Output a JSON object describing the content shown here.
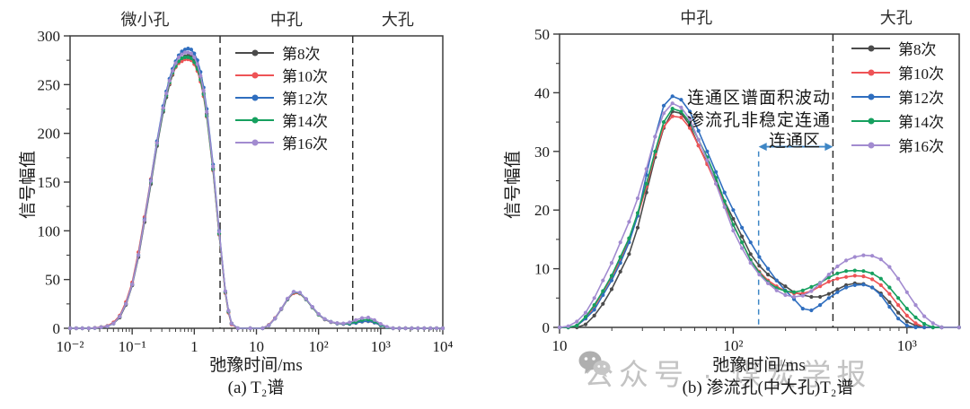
{
  "watermark": {
    "text": "公众号 · 煤炭学报",
    "icon": "wechat-icon"
  },
  "chart_data": [
    {
      "type": "line",
      "caption": "(a) T₂谱",
      "xlabel": "弛豫时间/ms",
      "ylabel": "信号幅值",
      "pore_labels": [
        "微小孔",
        "中孔",
        "大孔"
      ],
      "pore_boundaries_ms": [
        2.6,
        355
      ],
      "xlim_log": [
        -2,
        4
      ],
      "ylim": [
        0,
        300
      ],
      "y_major_step": 50,
      "y_minor_step": 25,
      "x_ticks": [
        {
          "value": 0.01,
          "label": "10⁻²"
        },
        {
          "value": 0.1,
          "label": "10⁻¹"
        },
        {
          "value": 1,
          "label": "1"
        },
        {
          "value": 10,
          "label": "10"
        },
        {
          "value": 100,
          "label": "10²"
        },
        {
          "value": 1000,
          "label": "10³"
        },
        {
          "value": 10000,
          "label": "10⁴"
        }
      ],
      "y_ticks": [
        {
          "value": 0,
          "label": "0"
        },
        {
          "value": 50,
          "label": "50"
        },
        {
          "value": 100,
          "label": "100"
        },
        {
          "value": 150,
          "label": "150"
        },
        {
          "value": 200,
          "label": "200"
        },
        {
          "value": 250,
          "label": "250"
        },
        {
          "value": 300,
          "label": "300"
        }
      ],
      "x_ms": [
        0.01,
        0.0126,
        0.0158,
        0.02,
        0.0251,
        0.0316,
        0.0398,
        0.0501,
        0.0631,
        0.0794,
        0.1,
        0.126,
        0.158,
        0.2,
        0.251,
        0.316,
        0.355,
        0.398,
        0.447,
        0.501,
        0.562,
        0.631,
        0.708,
        0.794,
        0.891,
        1,
        1.122,
        1.259,
        1.413,
        1.585,
        2,
        2.512,
        3.162,
        3.548,
        3.981,
        5.012,
        7.943,
        12.59,
        15.85,
        19.95,
        25.12,
        31.62,
        39.81,
        50.12,
        63.1,
        79.43,
        100,
        125.9,
        158.5,
        199.5,
        251.2,
        316.2,
        398.1,
        501.2,
        631,
        794.3,
        1000,
        1259,
        1585,
        1995,
        2512,
        3162,
        3981,
        5012,
        6310,
        7943,
        10000
      ],
      "series": [
        {
          "name": "第8次",
          "color": "#4b4b4b",
          "values": [
            0,
            0,
            0,
            0,
            0.3,
            1,
            2,
            5,
            11,
            24,
            44,
            73,
            109,
            148,
            187,
            222,
            237,
            250,
            260,
            268,
            273,
            277,
            279,
            280,
            279,
            275,
            268,
            257,
            241,
            220,
            164,
            97,
            37,
            17,
            5,
            0,
            0,
            0,
            3,
            10,
            19.5,
            29.5,
            37,
            36,
            29.5,
            21.5,
            14,
            9,
            6.3,
            5,
            4.5,
            4.5,
            5.5,
            6.8,
            7.2,
            5.8,
            3,
            1,
            0,
            0,
            0,
            0,
            0,
            0,
            0,
            0,
            0
          ]
        },
        {
          "name": "第10次",
          "color": "#ee5356",
          "values": [
            0,
            0,
            0,
            0,
            0.5,
            1.3,
            2.5,
            6,
            13,
            27,
            47,
            78,
            114,
            153,
            191,
            225,
            239,
            251,
            261,
            268,
            272,
            274,
            276,
            276,
            275,
            271,
            264,
            253,
            238,
            217,
            162,
            96,
            36,
            16,
            4,
            0,
            0,
            0,
            3.5,
            10.5,
            20,
            30,
            36,
            35.5,
            29.5,
            21.5,
            14,
            9.2,
            6.4,
            5,
            4.5,
            4.6,
            5.6,
            7,
            7.4,
            6,
            3.2,
            1,
            0,
            0,
            0,
            0,
            0,
            0,
            0,
            0,
            0
          ]
        },
        {
          "name": "第12次",
          "color": "#2f6ebf",
          "values": [
            0,
            0,
            0,
            0,
            0.3,
            1,
            2,
            5,
            12,
            25,
            45,
            75,
            112,
            152,
            192,
            228,
            243,
            256,
            266,
            274,
            280,
            284,
            286,
            287,
            286,
            282,
            275,
            263,
            247,
            225,
            168,
            100,
            38,
            18,
            5,
            0,
            0,
            0,
            3,
            10,
            20,
            30,
            37.5,
            36.5,
            30,
            22,
            14.5,
            9.5,
            6.5,
            5,
            4.5,
            4.5,
            5.5,
            7,
            7.5,
            6,
            3,
            1,
            0,
            0,
            0,
            0,
            0,
            0,
            0,
            0,
            0
          ]
        },
        {
          "name": "第14次",
          "color": "#16a05f",
          "values": [
            0,
            0,
            0,
            0,
            0.3,
            1,
            2,
            5,
            12,
            25,
            45,
            75,
            111,
            150,
            189,
            224,
            239,
            252,
            262,
            269,
            274,
            277,
            278,
            278,
            277,
            273,
            266,
            255,
            240,
            218,
            163,
            97,
            37,
            17,
            5,
            0,
            0,
            0,
            3,
            10,
            20,
            30,
            37,
            36,
            29.5,
            21.5,
            14,
            9.3,
            6.5,
            5.2,
            4.8,
            5,
            6.5,
            8.5,
            9,
            7,
            3.5,
            1,
            0,
            0,
            0,
            0,
            0,
            0,
            0,
            0,
            0
          ]
        },
        {
          "name": "第16次",
          "color": "#a28bd0",
          "values": [
            0,
            0,
            0,
            0,
            0.3,
            1,
            2,
            5,
            12,
            25,
            45,
            75,
            111,
            151,
            190,
            226,
            241,
            254,
            264,
            272,
            278,
            281,
            283,
            283,
            282,
            278,
            271,
            259,
            244,
            222,
            166,
            99,
            38,
            18,
            5,
            0,
            0,
            0,
            3,
            10,
            20,
            30.5,
            37.5,
            36.5,
            30,
            22,
            14.5,
            9.5,
            6.6,
            5.3,
            5,
            6,
            8.5,
            10.5,
            11,
            8.5,
            4.5,
            1.5,
            0,
            0,
            0,
            0,
            0,
            0,
            0,
            0,
            0
          ]
        }
      ]
    },
    {
      "type": "line",
      "caption": "(b) 渗流孔(中大孔)T₂谱",
      "xlabel": "弛豫时间/ms",
      "ylabel": "信号幅值",
      "pore_labels": [
        "中孔",
        "大孔"
      ],
      "pore_boundaries_ms": [
        375
      ],
      "xlim_log": [
        1,
        3.301
      ],
      "ylim": [
        0,
        50
      ],
      "y_major_step": 10,
      "y_minor_step": 5,
      "x_ticks": [
        {
          "value": 10,
          "label": "10"
        },
        {
          "value": 100,
          "label": "10²"
        },
        {
          "value": 1000,
          "label": "10³"
        }
      ],
      "y_ticks": [
        {
          "value": 0,
          "label": "0"
        },
        {
          "value": 10,
          "label": "10"
        },
        {
          "value": 20,
          "label": "20"
        },
        {
          "value": 30,
          "label": "30"
        },
        {
          "value": 40,
          "label": "40"
        },
        {
          "value": 50,
          "label": "50"
        }
      ],
      "annotation": {
        "line1": "连通区谱面积波动",
        "line2": "渗流孔非稳定连通",
        "zone_label": "连通区",
        "zone_range_ms": [
          140,
          375
        ],
        "color": "#3e86c5"
      },
      "x_ms": [
        10,
        11.22,
        12.59,
        14.13,
        15.85,
        17.78,
        19.95,
        22.39,
        25.12,
        28.18,
        31.62,
        35.48,
        39.81,
        44.67,
        50.12,
        56.23,
        63.1,
        70.79,
        79.43,
        89.13,
        100,
        112.2,
        125.9,
        141.3,
        158.5,
        177.8,
        199.5,
        223.9,
        251.2,
        281.8,
        316.2,
        354.8,
        398.1,
        446.7,
        501.2,
        562.3,
        631,
        708,
        794.3,
        891.3,
        1000,
        1122,
        1259,
        1413,
        1585,
        1995
      ],
      "series": [
        {
          "name": "第8次",
          "color": "#4b4b4b",
          "values": [
            0,
            0,
            0,
            0.5,
            2,
            4,
            6.5,
            9.5,
            12.5,
            17,
            23,
            29,
            34,
            36.8,
            36.5,
            34.5,
            31,
            28,
            25,
            21.5,
            18.5,
            15.5,
            12.5,
            10.5,
            9,
            8,
            7,
            6,
            5.5,
            5.2,
            5.2,
            5.7,
            6.5,
            7.2,
            7.5,
            7.4,
            6.8,
            5.8,
            4.3,
            2.5,
            1,
            0.3,
            0,
            0,
            0,
            0
          ]
        },
        {
          "name": "第10次",
          "color": "#ee5356",
          "values": [
            0,
            0,
            0.3,
            1.5,
            3.5,
            6,
            8.5,
            11.5,
            15,
            19,
            24,
            29.5,
            34.2,
            36,
            35.8,
            34,
            31,
            27.8,
            24.5,
            21,
            17.5,
            14.5,
            11.5,
            9.5,
            8,
            7,
            6.2,
            5.8,
            5.8,
            6.2,
            7,
            7.8,
            8.3,
            8.6,
            8.8,
            8.7,
            8.2,
            7.2,
            5.7,
            3.8,
            2,
            0.7,
            0,
            0,
            0,
            0
          ]
        },
        {
          "name": "第12次",
          "color": "#2f6ebf",
          "values": [
            0,
            0,
            0.3,
            1.5,
            3,
            5.5,
            8,
            11,
            14.5,
            19,
            26,
            32.5,
            37.8,
            39.4,
            38.8,
            36.8,
            33.5,
            30,
            26.5,
            23,
            20,
            17,
            14.5,
            12,
            10,
            8,
            6.3,
            4.8,
            3.2,
            2.9,
            3.8,
            5,
            6,
            6.8,
            7.2,
            7.3,
            6.8,
            5.5,
            3.5,
            1.5,
            0.3,
            0,
            0,
            0,
            0,
            0
          ]
        },
        {
          "name": "第14次",
          "color": "#16a05f",
          "values": [
            0,
            0,
            0.3,
            1.8,
            3.8,
            6.2,
            8.8,
            12,
            15.2,
            19.5,
            24.5,
            30,
            35,
            37.3,
            36.8,
            35,
            32,
            29,
            25.5,
            21.5,
            17.5,
            14.5,
            11.5,
            9.3,
            7.7,
            6.7,
            6.2,
            6,
            6.3,
            6.9,
            7.6,
            8.5,
            9.2,
            9.6,
            9.7,
            9.6,
            9.2,
            8.3,
            6.8,
            5,
            3.2,
            1.7,
            0.6,
            0,
            0,
            0
          ]
        },
        {
          "name": "第16次",
          "color": "#a28bd0",
          "values": [
            0,
            0.2,
            1,
            2.5,
            5,
            8,
            11,
            14.5,
            18,
            22,
            27,
            32.5,
            36.5,
            38.2,
            37.5,
            35.5,
            32,
            28.5,
            24.5,
            20.5,
            16.5,
            13.5,
            11,
            9,
            7.5,
            6.3,
            5.5,
            5.2,
            5.4,
            6.2,
            7.5,
            9,
            10.4,
            11.4,
            12,
            12.3,
            12.2,
            11.6,
            10.3,
            8.3,
            6,
            3.8,
            1.9,
            0.7,
            0,
            0
          ]
        }
      ]
    }
  ]
}
